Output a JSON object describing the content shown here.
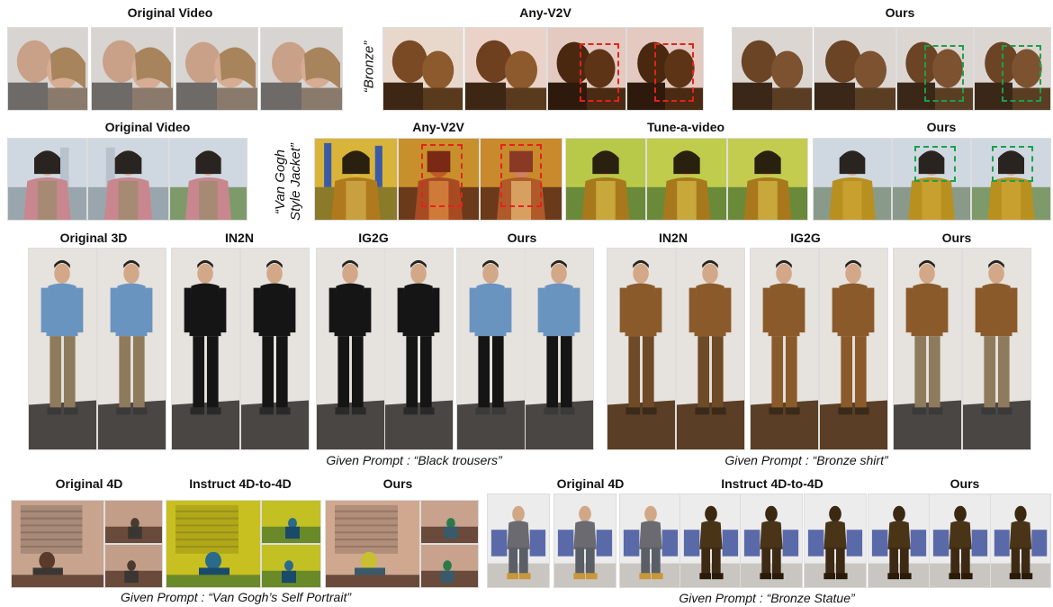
{
  "row1": {
    "original": "Original Video",
    "anyv2v": "Any-V2V",
    "ours": "Ours",
    "prompt": "“Bronze”"
  },
  "row2": {
    "original": "Original Video",
    "anyv2v": "Any-V2V",
    "tune": "Tune-a-video",
    "ours": "Ours",
    "prompt_line1": "“Van Gogh",
    "prompt_line2": "Style Jacket”"
  },
  "row3": {
    "original3d": "Original 3D",
    "in2n_a": "IN2N",
    "ig2g_a": "IG2G",
    "ours_a": "Ours",
    "in2n_b": "IN2N",
    "ig2g_b": "IG2G",
    "ours_b": "Ours",
    "caption_a": "Given Prompt : “Black trousers”",
    "caption_b": "Given Prompt : “Bronze shirt”"
  },
  "row4": {
    "original4d_a": "Original 4D",
    "instruct_a": "Instruct 4D-to-4D",
    "ours_a": "Ours",
    "original4d_b": "Original 4D",
    "instruct_b": "Instruct 4D-to-4D",
    "ours_b": "Ours",
    "caption_a": "Given Prompt : “Van Gogh’s Self Portrait”",
    "caption_b": "Given Prompt : “Bronze Statue”"
  },
  "colors": {
    "highlight_baseline": "#e3231b",
    "highlight_ours": "#1aa14a",
    "bronze": "#8a5a2b",
    "wall": "#e6e2dd",
    "floor": "#4a4643"
  }
}
